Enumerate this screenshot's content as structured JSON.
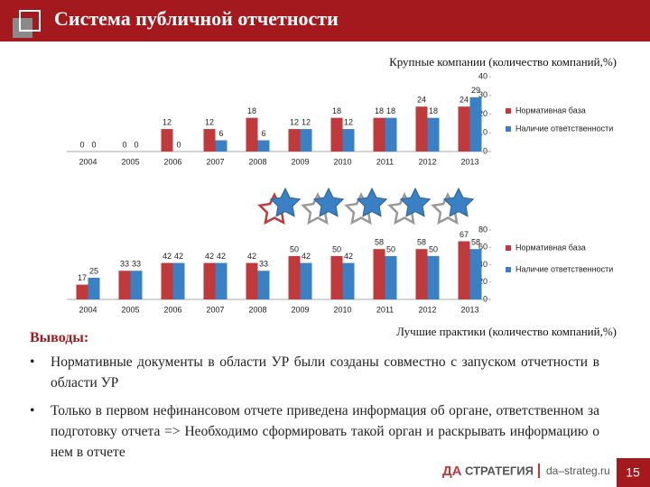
{
  "header": {
    "title": "Система публичной отчетности"
  },
  "chart_data": [
    {
      "type": "bar",
      "title": "Крупные компании (количество компаний,%)",
      "categories": [
        "2004",
        "2005",
        "2006",
        "2007",
        "2008",
        "2009",
        "2010",
        "2011",
        "2012",
        "2013"
      ],
      "series": [
        {
          "name": "Нормативная база",
          "color": "#c0393b",
          "values": [
            0,
            0,
            12,
            12,
            18,
            12,
            18,
            18,
            24,
            24
          ]
        },
        {
          "name": "Наличие ответственности",
          "color": "#3a80c4",
          "values": [
            0,
            0,
            0,
            6,
            6,
            12,
            12,
            18,
            18,
            29
          ]
        }
      ],
      "ylim": [
        0,
        40
      ],
      "yticks": [
        0,
        10,
        20,
        30,
        40
      ],
      "legend": "right"
    },
    {
      "type": "bar",
      "title": "Лучшие практики (количество компаний,%)",
      "categories": [
        "2004",
        "2005",
        "2006",
        "2007",
        "2008",
        "2009",
        "2010",
        "2011",
        "2012",
        "2013"
      ],
      "series": [
        {
          "name": "Нормативная база",
          "color": "#c0393b",
          "values": [
            17,
            33,
            42,
            42,
            42,
            50,
            50,
            58,
            58,
            67
          ]
        },
        {
          "name": "Наличие ответственности",
          "color": "#3a80c4",
          "values": [
            25,
            33,
            42,
            42,
            33,
            42,
            42,
            50,
            50,
            58
          ]
        }
      ],
      "ylim": [
        0,
        80
      ],
      "yticks": [
        0,
        20,
        40,
        60,
        80
      ],
      "legend": "right"
    }
  ],
  "conclusions": {
    "heading": "Выводы:",
    "items": [
      "Нормативные документы в области УР были созданы совместно с запуском отчетности в области УР",
      "Только в первом нефинансовом отчете приведена информация об органе, ответственном за подготовку отчета => Необходимо сформировать такой орган и раскрывать информацию о нем в отчете"
    ]
  },
  "footer": {
    "brand_prefix": "ДА",
    "brand": "СТРАТЕГИЯ",
    "url": "da–strateg.ru",
    "page": "15"
  }
}
